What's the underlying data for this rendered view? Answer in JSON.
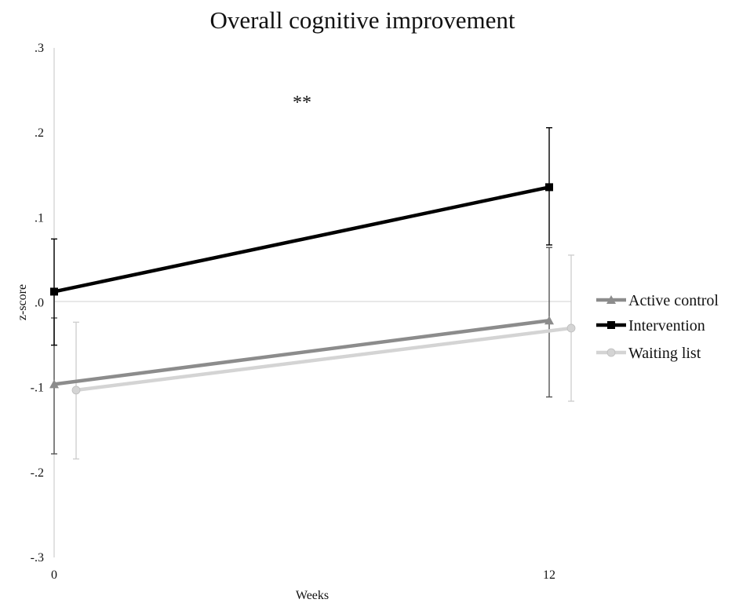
{
  "chart_data": {
    "type": "line",
    "title": "Overall cognitive improvement",
    "xlabel": "Weeks",
    "ylabel": "z-score",
    "x_categories": [
      "0",
      "12"
    ],
    "ylim": [
      -0.3,
      0.3
    ],
    "y_ticks": [
      0.3,
      0.2,
      0.1,
      0.0,
      -0.1,
      -0.2,
      -0.3
    ],
    "y_tick_labels": [
      ".3",
      ".2",
      ".1",
      ".0",
      "-.1",
      "-.2",
      "-.3"
    ],
    "grid": false,
    "legend_position": "right",
    "annotation": {
      "text": "**"
    },
    "series": [
      {
        "name": "Active control",
        "marker": "triangle",
        "color": "#8c8c8c",
        "values": [
          -0.096,
          -0.021
        ],
        "error": [
          {
            "low": -0.178,
            "high": -0.018
          },
          {
            "low": -0.111,
            "high": 0.065
          }
        ]
      },
      {
        "name": "Intervention",
        "marker": "square",
        "color": "#000000",
        "values": [
          0.013,
          0.136
        ],
        "error": [
          {
            "low": -0.05,
            "high": 0.075
          },
          {
            "low": 0.068,
            "high": 0.206
          }
        ]
      },
      {
        "name": "Waiting list",
        "marker": "circle",
        "color": "#d4d4d4",
        "values": [
          -0.103,
          -0.03
        ],
        "error": [
          {
            "low": -0.184,
            "high": -0.023
          },
          {
            "low": -0.116,
            "high": 0.056
          }
        ]
      }
    ]
  }
}
